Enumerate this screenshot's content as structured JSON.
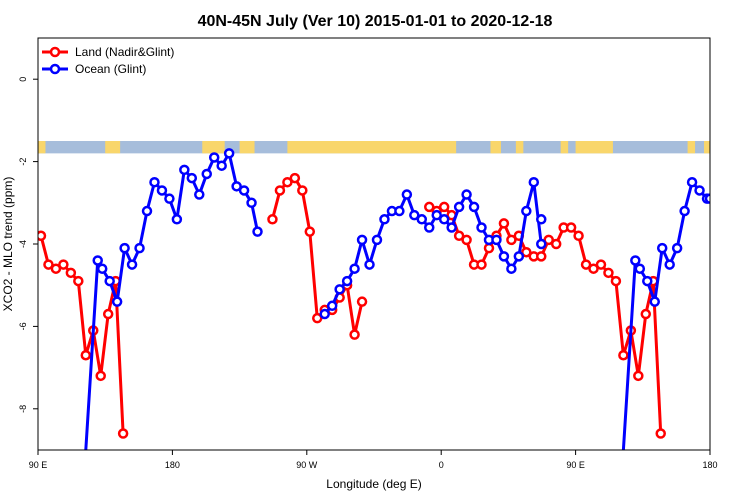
{
  "chart_data": {
    "type": "line",
    "title": "40N-45N July (Ver 10)   2015-01-01 to 2020-12-18",
    "xlabel": "Longitude (deg E)",
    "ylabel": "XCO2 - MLO trend (ppm)",
    "xlim": [
      90,
      540
    ],
    "ylim": [
      -9,
      1.0
    ],
    "x_ticks": [
      {
        "value": 90,
        "label": "90 E"
      },
      {
        "value": 180,
        "label": "180"
      },
      {
        "value": 270,
        "label": "90 W"
      },
      {
        "value": 360,
        "label": "0"
      },
      {
        "value": 450,
        "label": "90 E"
      },
      {
        "value": 540,
        "label": "180"
      }
    ],
    "y_ticks": [
      {
        "value": 0,
        "label": "0"
      },
      {
        "value": -2,
        "label": "-2"
      },
      {
        "value": -4,
        "label": "-4"
      },
      {
        "value": -6,
        "label": "-6"
      },
      {
        "value": -8,
        "label": "-8"
      }
    ],
    "legend_position": "top-left",
    "land_ocean_band": {
      "y_top": -1.5,
      "y_bottom": -1.8,
      "ocean_color": "#a6bddb",
      "land_color": "#f9d66b",
      "land_segments": [
        [
          90,
          95
        ],
        [
          135,
          145
        ],
        [
          200,
          215
        ],
        [
          225,
          235
        ],
        [
          257,
          370
        ],
        [
          393,
          400
        ],
        [
          410,
          415
        ],
        [
          440,
          445
        ],
        [
          450,
          475
        ],
        [
          525,
          530
        ],
        [
          536,
          540
        ]
      ]
    },
    "series": [
      {
        "name": "Land (Nadir&Glint)",
        "color": "#ff0000",
        "segments": [
          [
            [
              92,
              -3.8
            ],
            [
              97,
              -4.5
            ],
            [
              102,
              -4.6
            ],
            [
              107,
              -4.5
            ],
            [
              112,
              -4.7
            ],
            [
              117,
              -4.9
            ],
            [
              122,
              -6.7
            ],
            [
              127,
              -6.1
            ],
            [
              132,
              -7.2
            ],
            [
              137,
              -5.7
            ],
            [
              142,
              -4.9
            ],
            [
              147,
              -8.6
            ]
          ],
          [
            [
              247,
              -3.4
            ],
            [
              252,
              -2.7
            ],
            [
              257,
              -2.5
            ],
            [
              262,
              -2.4
            ],
            [
              267,
              -2.7
            ],
            [
              272,
              -3.7
            ],
            [
              277,
              -5.8
            ],
            [
              282,
              -5.6
            ],
            [
              287,
              -5.6
            ],
            [
              292,
              -5.3
            ],
            [
              297,
              -5.0
            ],
            [
              302,
              -6.2
            ],
            [
              307,
              -5.4
            ]
          ],
          [
            [
              352,
              -3.1
            ],
            [
              357,
              -3.2
            ],
            [
              362,
              -3.1
            ],
            [
              367,
              -3.3
            ],
            [
              372,
              -3.8
            ],
            [
              377,
              -3.9
            ],
            [
              382,
              -4.5
            ],
            [
              387,
              -4.5
            ],
            [
              392,
              -4.1
            ],
            [
              397,
              -3.8
            ],
            [
              402,
              -3.5
            ],
            [
              407,
              -3.9
            ],
            [
              412,
              -3.8
            ],
            [
              417,
              -4.2
            ],
            [
              422,
              -4.3
            ],
            [
              427,
              -4.3
            ],
            [
              432,
              -3.9
            ],
            [
              437,
              -4.0
            ],
            [
              442,
              -3.6
            ],
            [
              447,
              -3.6
            ],
            [
              452,
              -3.8
            ],
            [
              457,
              -4.5
            ],
            [
              462,
              -4.6
            ],
            [
              467,
              -4.5
            ],
            [
              472,
              -4.7
            ],
            [
              477,
              -4.9
            ],
            [
              482,
              -6.7
            ],
            [
              487,
              -6.1
            ],
            [
              492,
              -7.2
            ],
            [
              497,
              -5.7
            ],
            [
              502,
              -4.9
            ],
            [
              507,
              -8.6
            ]
          ]
        ]
      },
      {
        "name": "Ocean (Glint)",
        "color": "#0000ff",
        "segments": [
          [
            [
              122,
              -9.0
            ],
            [
              130,
              -4.4
            ],
            [
              133,
              -4.6
            ],
            [
              138,
              -4.9
            ],
            [
              143,
              -5.4
            ],
            [
              148,
              -4.1
            ],
            [
              153,
              -4.5
            ],
            [
              158,
              -4.1
            ],
            [
              163,
              -3.2
            ],
            [
              168,
              -2.5
            ],
            [
              173,
              -2.7
            ],
            [
              178,
              -2.9
            ],
            [
              183,
              -3.4
            ],
            [
              188,
              -2.2
            ],
            [
              193,
              -2.4
            ],
            [
              198,
              -2.8
            ],
            [
              203,
              -2.3
            ],
            [
              208,
              -1.9
            ],
            [
              213,
              -2.1
            ],
            [
              218,
              -1.8
            ],
            [
              223,
              -2.6
            ],
            [
              228,
              -2.7
            ],
            [
              233,
              -3.0
            ],
            [
              237,
              -3.7
            ]
          ],
          [
            [
              282,
              -5.7
            ],
            [
              287,
              -5.5
            ],
            [
              292,
              -5.1
            ],
            [
              297,
              -4.9
            ],
            [
              302,
              -4.6
            ],
            [
              307,
              -3.9
            ],
            [
              312,
              -4.5
            ],
            [
              317,
              -3.9
            ],
            [
              322,
              -3.4
            ],
            [
              327,
              -3.2
            ],
            [
              332,
              -3.2
            ],
            [
              337,
              -2.8
            ],
            [
              342,
              -3.3
            ],
            [
              347,
              -3.4
            ],
            [
              352,
              -3.6
            ],
            [
              357,
              -3.3
            ],
            [
              362,
              -3.4
            ],
            [
              367,
              -3.6
            ],
            [
              372,
              -3.1
            ],
            [
              377,
              -2.8
            ],
            [
              382,
              -3.1
            ],
            [
              387,
              -3.6
            ],
            [
              392,
              -3.9
            ],
            [
              397,
              -3.9
            ],
            [
              402,
              -4.3
            ],
            [
              407,
              -4.6
            ],
            [
              412,
              -4.3
            ],
            [
              417,
              -3.2
            ],
            [
              422,
              -2.5
            ],
            [
              427,
              -4.0
            ]
          ],
          [
            [
              427,
              -3.4
            ]
          ],
          [
            [
              482,
              -9.0
            ],
            [
              490,
              -4.4
            ],
            [
              493,
              -4.6
            ],
            [
              498,
              -4.9
            ],
            [
              503,
              -5.4
            ],
            [
              508,
              -4.1
            ],
            [
              513,
              -4.5
            ],
            [
              518,
              -4.1
            ],
            [
              523,
              -3.2
            ],
            [
              528,
              -2.5
            ],
            [
              533,
              -2.7
            ],
            [
              538,
              -2.9
            ],
            [
              540,
              -2.9
            ]
          ]
        ]
      }
    ]
  }
}
